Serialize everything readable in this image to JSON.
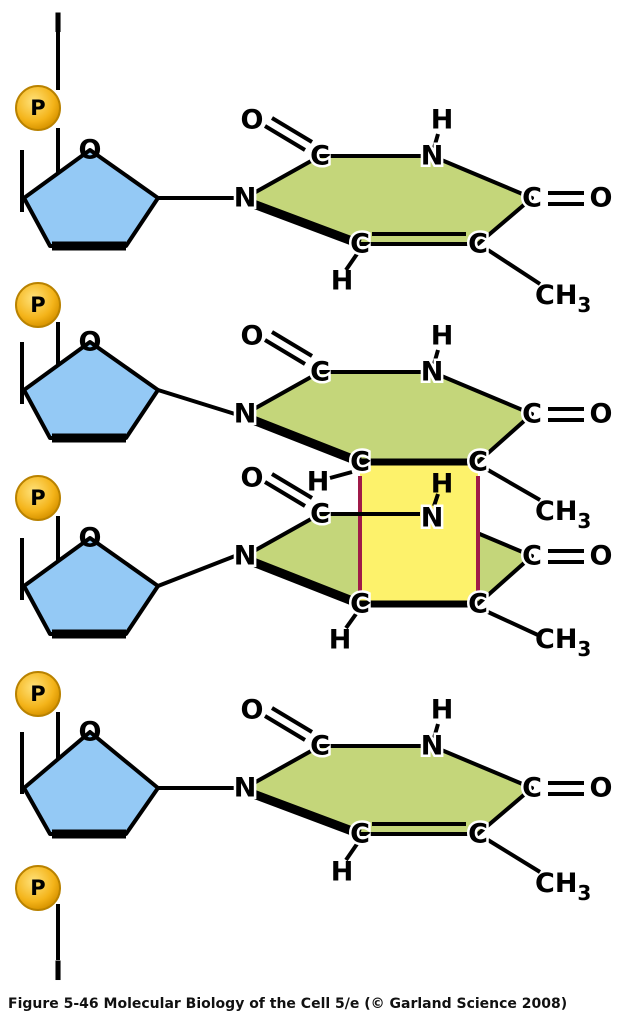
{
  "atoms": {
    "oxygen": "O",
    "nitrogen": "N",
    "carbon": "C",
    "hydrogen": "H",
    "methyl": "CH",
    "methyl_subscript": "3",
    "phosphate": "P",
    "chain_end_top": "I",
    "chain_end_bottom": "I"
  },
  "colors": {
    "sugar_fill": "#94c9f5",
    "base_fill": "#c4d67a",
    "dimer_fill": "#fdf26b",
    "dimer_bond": "#a01a48",
    "phosphate_fill": "#f4b41a",
    "phosphate_edge": "#b98200",
    "stroke": "#000000"
  },
  "caption": "Figure 5-46  Molecular Biology of the Cell 5/e (© Garland Science 2008)"
}
